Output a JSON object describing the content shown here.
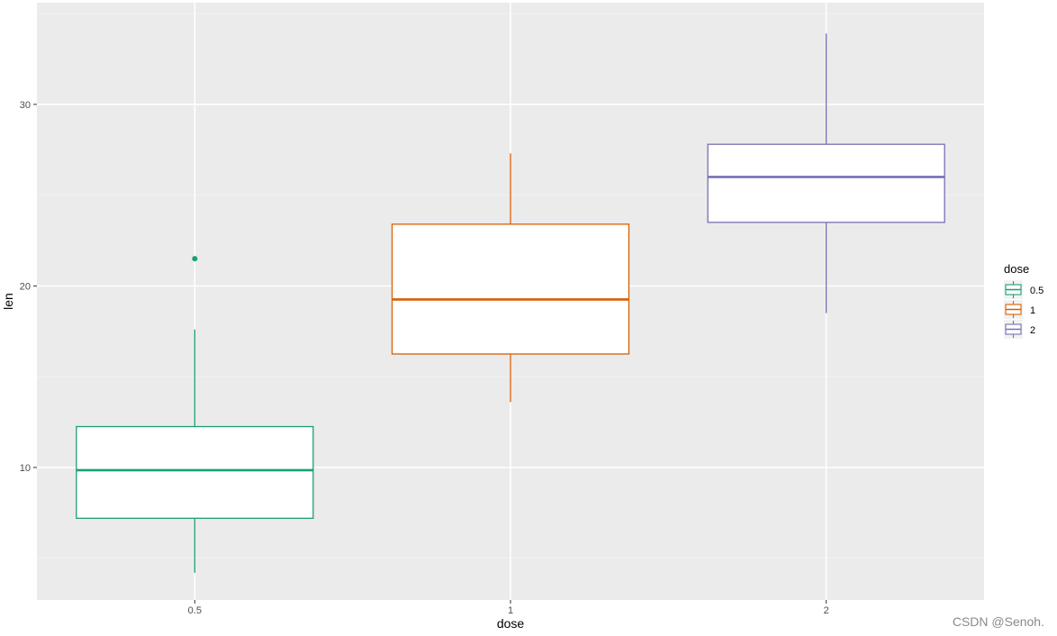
{
  "chart_data": {
    "type": "box",
    "xlabel": "dose",
    "ylabel": "len",
    "categories": [
      "0.5",
      "1",
      "2"
    ],
    "ylim": [
      2.7,
      35.6
    ],
    "yticks": [
      10,
      20,
      30
    ],
    "grid": true,
    "legend": {
      "title": "dose",
      "placement": "right",
      "entries": [
        "0.5",
        "1",
        "2"
      ]
    },
    "series": [
      {
        "category": "0.5",
        "color": "#1B9E77",
        "min": 4.2,
        "q1": 7.2,
        "median": 9.85,
        "q3": 12.25,
        "max": 17.6,
        "outliers": [
          21.5
        ]
      },
      {
        "category": "1",
        "color": "#D95F02",
        "min": 13.6,
        "q1": 16.25,
        "median": 19.25,
        "q3": 23.4,
        "max": 27.3,
        "outliers": []
      },
      {
        "category": "2",
        "color": "#7570B3",
        "min": 18.5,
        "q1": 23.5,
        "median": 26.0,
        "q3": 27.8,
        "max": 33.9,
        "outliers": []
      }
    ]
  },
  "watermark": "CSDN @Senoh."
}
